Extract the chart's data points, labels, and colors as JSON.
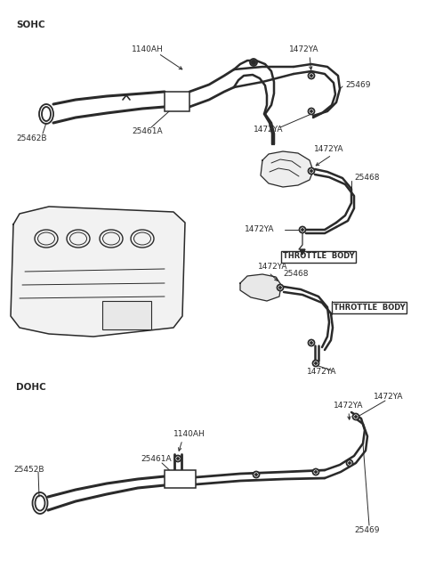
{
  "bg_color": "#ffffff",
  "line_color": "#2a2a2a",
  "lw": 1.3,
  "font_size": 6.5,
  "labels": {
    "sohc": "SOHC",
    "dohc": "DOHC",
    "throttle_body": "THROTTLE  BODY",
    "p1140AH_top": "1140AH",
    "p1140AH_bot": "1140AH",
    "p25461A_top": "25461A",
    "p25461A_bot": "25461A",
    "p25462B": "25462B",
    "p25469_top": "25469",
    "p25469_bot": "25469",
    "p25468_top": "25468",
    "p25468_mid": "25468",
    "p25452B": "25452B",
    "p1472YA": "1472YA"
  }
}
